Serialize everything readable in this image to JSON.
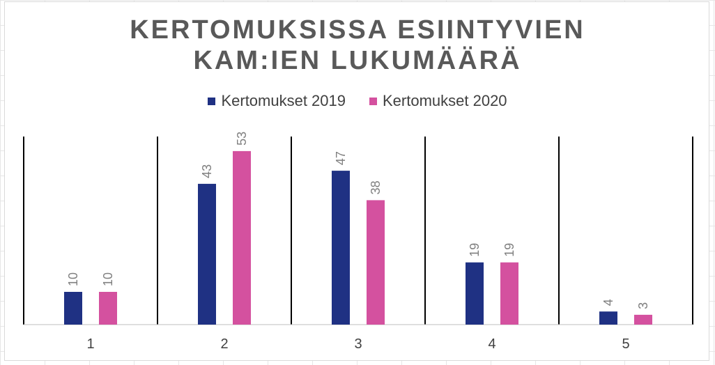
{
  "chart_data": {
    "type": "bar",
    "title_lines": [
      "KERTOMUKSISSA ESIINTYVIEN",
      "KAM:IEN LUKUMÄÄRÄ"
    ],
    "categories": [
      "1",
      "2",
      "3",
      "4",
      "5"
    ],
    "series": [
      {
        "name": "Kertomukset 2019",
        "color": "#1f3183",
        "values": [
          10,
          43,
          47,
          19,
          4
        ]
      },
      {
        "name": "Kertomukset 2020",
        "color": "#d4519f",
        "values": [
          10,
          53,
          38,
          19,
          3
        ]
      }
    ],
    "ylim": [
      0,
      60
    ],
    "legend_position": "top",
    "grid": false,
    "category_separators": true
  }
}
